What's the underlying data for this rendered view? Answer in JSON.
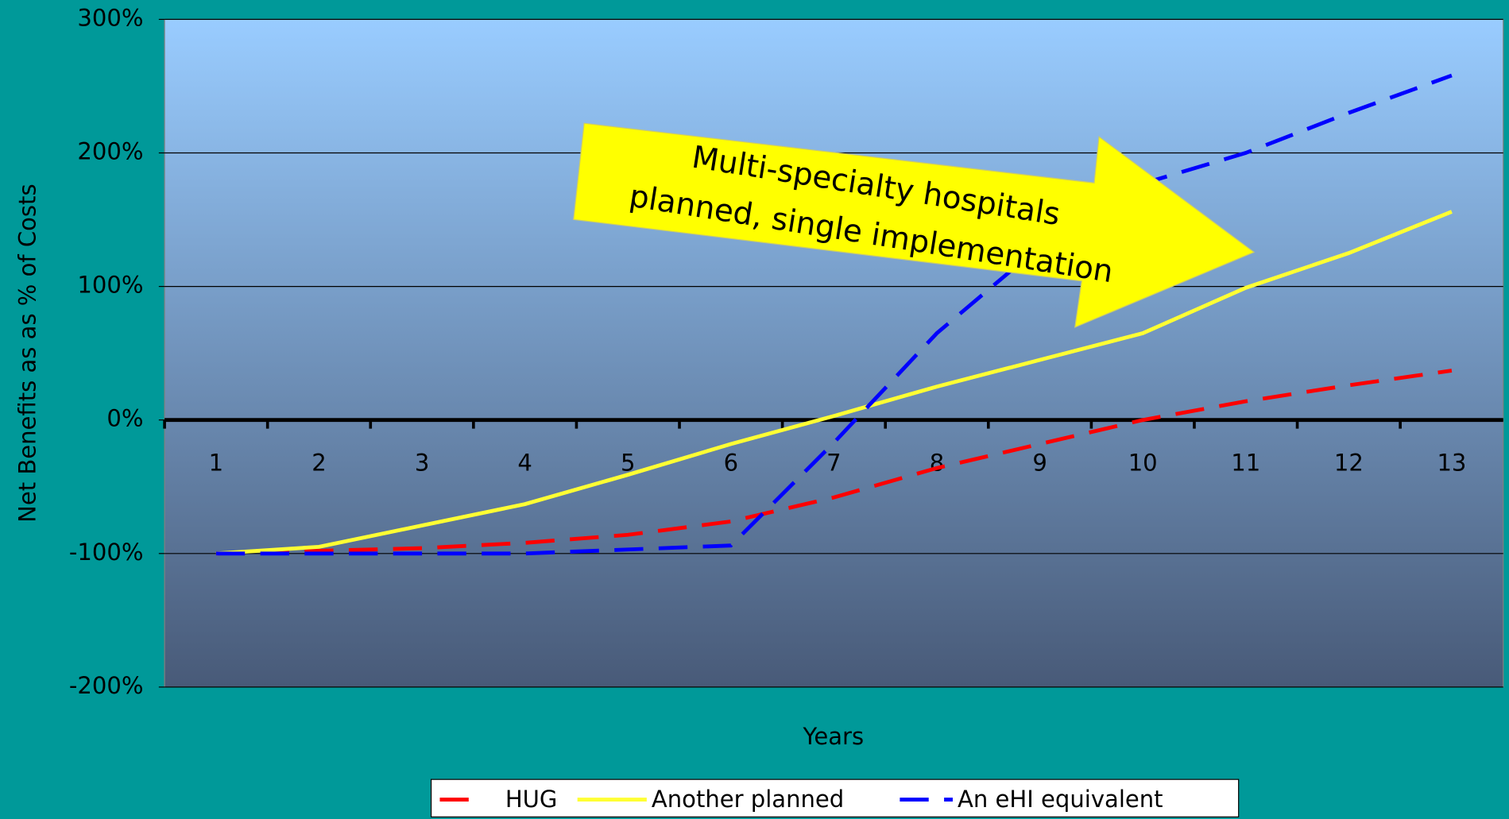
{
  "chart_data": {
    "type": "line",
    "annotation": [
      "Multi-specialty hospitals",
      "planned, single implementation"
    ],
    "x_label": "Years",
    "y_label": "Net Benefits as as % of Costs",
    "categories": [
      "1",
      "2",
      "3",
      "4",
      "5",
      "6",
      "7",
      "8",
      "9",
      "10",
      "11",
      "12",
      "13"
    ],
    "series": [
      {
        "name": "HUG",
        "color": "#ff0000",
        "dashed": true,
        "values": [
          -100,
          -98,
          -96,
          -92,
          -86,
          -76,
          -58,
          -36,
          -18,
          0,
          14,
          26,
          37
        ]
      },
      {
        "name": "Another planned",
        "color": "#ffff33",
        "dashed": false,
        "values": [
          -100,
          -95,
          -79,
          -63,
          -41,
          -18,
          3,
          25,
          45,
          65,
          99,
          125,
          156
        ]
      },
      {
        "name": "An eHI equivalent",
        "color": "#0000ff",
        "dashed": true,
        "values": [
          -100,
          -100,
          -100,
          -100,
          -97,
          -94,
          -17,
          65,
          130,
          177,
          200,
          230,
          258
        ]
      }
    ],
    "ylim": [
      -200,
      300
    ],
    "yticks": [
      {
        "value": -200,
        "label": "-200%"
      },
      {
        "value": -100,
        "label": "-100%"
      },
      {
        "value": 0,
        "label": "0%"
      },
      {
        "value": 100,
        "label": "100%"
      },
      {
        "value": 200,
        "label": "200%"
      },
      {
        "value": 300,
        "label": "300%"
      }
    ],
    "grid": true,
    "legend": "bottom"
  }
}
